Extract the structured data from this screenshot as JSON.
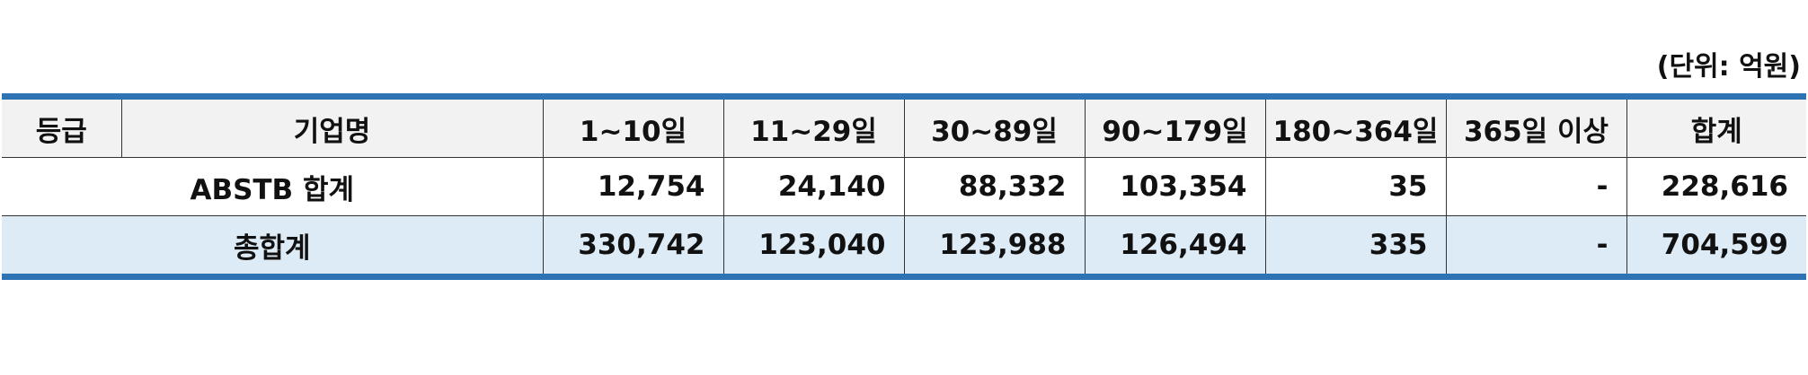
{
  "unit_note": "(단위: 억원)",
  "header": [
    "등급",
    "기업명",
    "1~10일",
    "11~29일",
    "30~89일",
    "90~179일",
    "180~364일",
    "365일 이상",
    "합계"
  ],
  "rows": [
    {
      "label": "ABSTB 합계",
      "values": [
        "12,754",
        "24,140",
        "88,332",
        "103,354",
        "35",
        "-",
        "228,616"
      ]
    },
    {
      "label": "총합계",
      "values": [
        "330,742",
        "123,040",
        "123,988",
        "126,494",
        "335",
        "-",
        "704,599"
      ]
    }
  ],
  "colors": {
    "rule": "#2e74b5",
    "header_bg": "#f2f2f2",
    "total_bg": "#ddebf7"
  }
}
